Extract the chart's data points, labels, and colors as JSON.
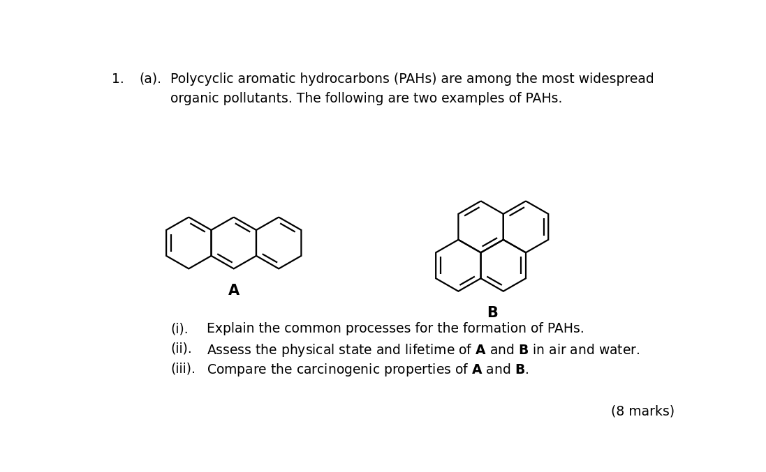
{
  "background_color": "#ffffff",
  "title_number": "1.",
  "title_part": "(a).",
  "title_text_line1": "Polycyclic aromatic hydrocarbons (PAHs) are among the most widespread",
  "title_text_line2": "organic pollutants. The following are two examples of PAHs.",
  "label_A": "A",
  "label_B": "B",
  "marks": "(8 marks)",
  "font_size_text": 13.5,
  "font_size_label": 15,
  "font_size_marks": 13.5,
  "line_color": "#000000",
  "line_width": 1.6
}
